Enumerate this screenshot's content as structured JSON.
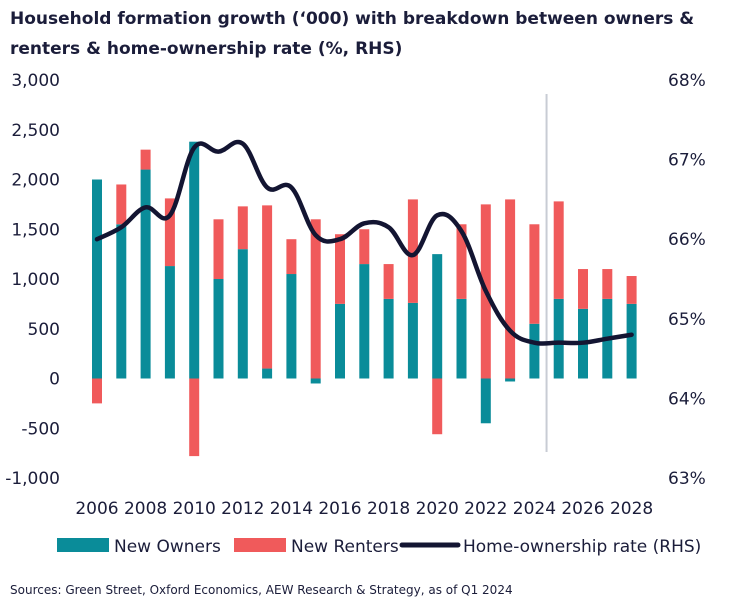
{
  "title": "Household formation growth (‘000) with breakdown between owners & renters & home-ownership rate (%, RHS)",
  "source": "Sources: Green Street, Oxford Economics, AEW Research & Strategy, as of Q1 2024",
  "colors": {
    "owners": "#0a8c99",
    "renters": "#f05a5b",
    "rate": "#131532",
    "divider": "#c8ccd4"
  },
  "chart_data": {
    "type": "bar",
    "stacked": true,
    "categories": [
      2006,
      2007,
      2008,
      2009,
      2010,
      2011,
      2012,
      2013,
      2014,
      2015,
      2016,
      2017,
      2018,
      2019,
      2020,
      2021,
      2022,
      2023,
      2024,
      2025,
      2026,
      2027,
      2028
    ],
    "x_tick_labels": [
      "2006",
      "2008",
      "2010",
      "2012",
      "2014",
      "2016",
      "2018",
      "2020",
      "2022",
      "2024",
      "2026",
      "2028"
    ],
    "series": [
      {
        "name": "New Owners",
        "type": "bar",
        "axis": "left",
        "values": [
          2000,
          1550,
          2100,
          1130,
          2380,
          1000,
          1300,
          100,
          1050,
          -50,
          750,
          1150,
          800,
          760,
          1250,
          800,
          -450,
          -30,
          550,
          800,
          700,
          800,
          750
        ]
      },
      {
        "name": "New Renters",
        "type": "bar",
        "axis": "left",
        "values": [
          -250,
          400,
          200,
          680,
          -780,
          600,
          430,
          1640,
          350,
          1600,
          700,
          350,
          350,
          1040,
          -560,
          750,
          1750,
          1800,
          1000,
          980,
          400,
          300,
          280
        ]
      },
      {
        "name": "Home-ownership rate (RHS)",
        "type": "line",
        "axis": "right",
        "values": [
          66.0,
          66.15,
          66.4,
          66.3,
          67.15,
          67.1,
          67.2,
          66.65,
          66.65,
          66.05,
          66.0,
          66.2,
          66.15,
          65.8,
          66.3,
          66.1,
          65.35,
          64.85,
          64.7,
          64.7,
          64.7,
          64.75,
          64.8
        ]
      }
    ],
    "y_left": {
      "ylim": [
        -1000,
        3000
      ],
      "ticks": [
        "3,000",
        "2,500",
        "2,000",
        "1,500",
        "1,000",
        "500",
        "0",
        "-500",
        "-1,000"
      ]
    },
    "y_right": {
      "ylim": [
        63,
        68
      ],
      "ticks": [
        "68%",
        "67%",
        "66%",
        "65%",
        "64%",
        "63%"
      ]
    },
    "forecast_divider_after": 2024,
    "grid": false,
    "legend": {
      "placement": "bottom",
      "items": [
        "New Owners",
        "New Renters",
        "Home-ownership rate (RHS)"
      ]
    }
  }
}
